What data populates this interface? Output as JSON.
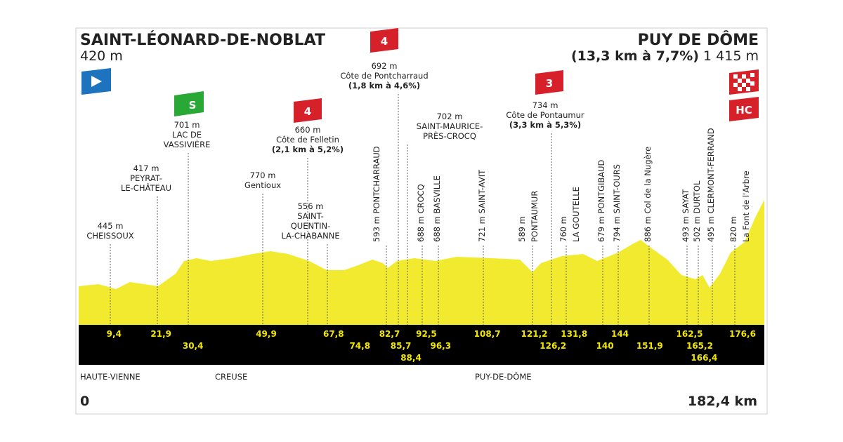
{
  "start": {
    "name": "SAINT-LÉONARD-DE-NOBLAT",
    "altitude": "420 m"
  },
  "finish": {
    "name": "PUY DE DÔME",
    "climb": "(13,3 km à 7,7%)",
    "altitude": "1 415 m",
    "category": "HC"
  },
  "waypoints": [
    {
      "lines": [
        "445 m",
        "CHEISSOUX"
      ]
    },
    {
      "lines": [
        "417 m",
        "PEYRAT-",
        "LE-CHÂTEAU"
      ]
    },
    {
      "lines": [
        "701 m",
        "LAC DE",
        "VASSIVIÈRE"
      ],
      "sprint": "S"
    },
    {
      "lines": [
        "770 m",
        "Gentioux"
      ]
    },
    {
      "lines": [
        "660 m",
        "Côte de Felletin",
        "(2,1 km à 5,2%)"
      ],
      "category": "4"
    },
    {
      "lines": [
        "556 m",
        "SAINT-",
        "QUENTIN-",
        "LA-CHABANNE"
      ]
    },
    {
      "lines": [
        "593 m PONTCHARRAUD"
      ]
    },
    {
      "lines": [
        "692 m",
        "Côte de Pontcharraud",
        "(1,8 km à 4,6%)"
      ],
      "category": "4"
    },
    {
      "lines": [
        "702 m",
        "SAINT-MAURICE-",
        "PRÈS-CROCQ"
      ]
    },
    {
      "lines": [
        "688 m CROCQ"
      ]
    },
    {
      "lines": [
        "688 m BASVILLE"
      ]
    },
    {
      "lines": [
        "721 m SAINT-AVIT"
      ]
    },
    {
      "lines": [
        "589 m",
        "PONTAUMUR"
      ]
    },
    {
      "lines": [
        "734 m",
        "Côte de Pontaumur",
        "(3,3 km à 5,3%)"
      ],
      "category": "3"
    },
    {
      "lines": [
        "760 m",
        "LA GOUTELLE"
      ]
    },
    {
      "lines": [
        "679 m PONTGIBAUD"
      ]
    },
    {
      "lines": [
        "794 m SAINT-OURS"
      ]
    },
    {
      "lines": [
        "886 m Col de la Nugère"
      ]
    },
    {
      "lines": [
        "493 m SAYAT"
      ]
    },
    {
      "lines": [
        "502 m DURTOL"
      ]
    },
    {
      "lines": [
        "495 m CLERMONT-FERRAND"
      ]
    },
    {
      "lines": [
        "820 m",
        "La Font de l'Arbre"
      ]
    }
  ],
  "km_markers": [
    "9,4",
    "21,9",
    "30,4",
    "49,9",
    "67,8",
    "74,8",
    "82,7",
    "85,7",
    "88,4",
    "92,5",
    "96,3",
    "108,7",
    "121,2",
    "126,2",
    "131,8",
    "140",
    "144",
    "151,9",
    "162,5",
    "165,2",
    "166,4",
    "176,6"
  ],
  "departments": [
    "HAUTE-VIENNE",
    "CREUSE",
    "PUY-DE-DÔME"
  ],
  "distance_start": "0",
  "distance_total": "182,4 km"
}
